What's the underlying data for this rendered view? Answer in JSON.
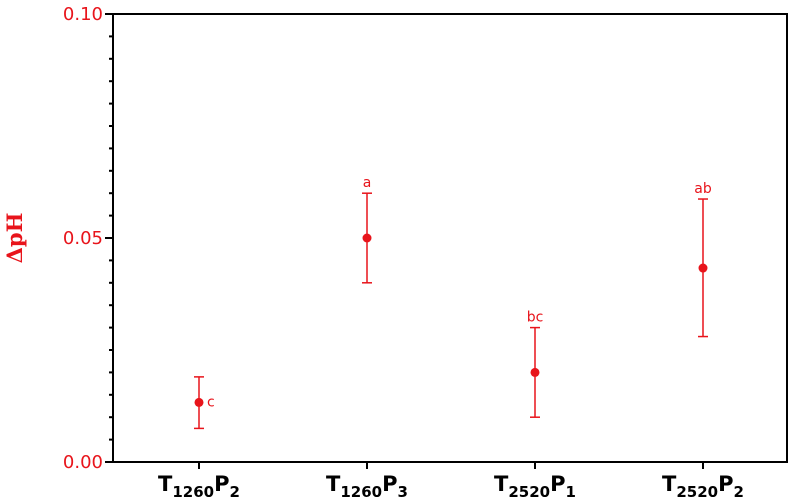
{
  "chart_data": {
    "type": "scatter",
    "title": "",
    "ylabel": "ΔpH",
    "ylim": [
      0,
      0.1
    ],
    "yticks": [
      {
        "value": 0,
        "label": "0.00"
      },
      {
        "value": 0.05,
        "label": "0.05"
      },
      {
        "value": 0.1,
        "label": "0.10"
      }
    ],
    "categories": [
      {
        "main1": "T",
        "sub1": "1260",
        "main2": "P",
        "sub2": "2"
      },
      {
        "main1": "T",
        "sub1": "1260",
        "main2": "P",
        "sub2": "3"
      },
      {
        "main1": "T",
        "sub1": "2520",
        "main2": "P",
        "sub2": "1"
      },
      {
        "main1": "T",
        "sub1": "2520",
        "main2": "P",
        "sub2": "2"
      }
    ],
    "points": [
      {
        "mean": 0.0133,
        "low": 0.0075,
        "high": 0.019,
        "letter": "c"
      },
      {
        "mean": 0.05,
        "low": 0.04,
        "high": 0.06,
        "letter": "a"
      },
      {
        "mean": 0.02,
        "low": 0.01,
        "high": 0.03,
        "letter": "bc"
      },
      {
        "mean": 0.0433,
        "low": 0.028,
        "high": 0.0587,
        "letter": "ab"
      }
    ],
    "color": "#e8141b",
    "axis_color": "#000000",
    "grid": false
  }
}
